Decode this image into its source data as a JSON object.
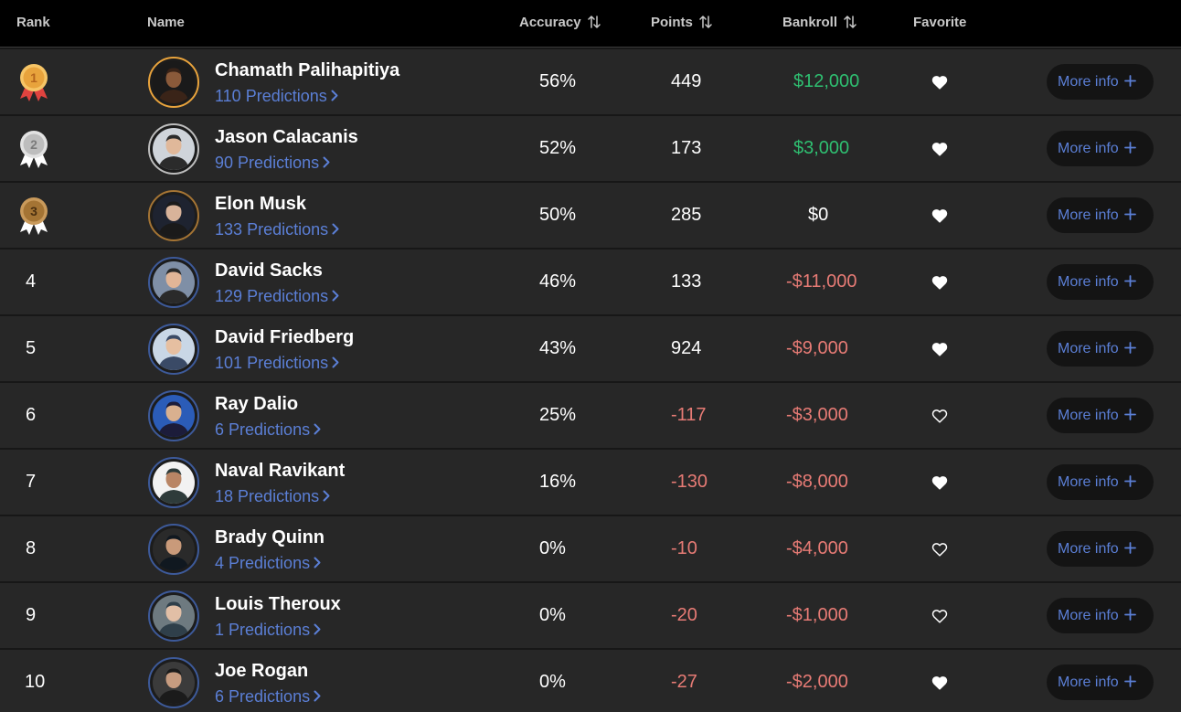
{
  "header": {
    "rank": "Rank",
    "name": "Name",
    "accuracy": "Accuracy",
    "points": "Points",
    "bankroll": "Bankroll",
    "favorite": "Favorite",
    "sort_icon": "sort-arrows-icon"
  },
  "button_label": "More info",
  "button_icon": "plus-icon",
  "colors": {
    "positive": "#2fbf71",
    "negative": "#e77b75",
    "link": "#5b7fd6",
    "gold": "#e8a33c",
    "silver": "#bfbfbf",
    "bronze": "#a47434"
  },
  "rows": [
    {
      "rank": "1",
      "medal": "gold-medal-icon",
      "name": "Chamath Palihapitiya",
      "predictions_count": "110",
      "predictions_label": "Predictions",
      "accuracy": "56%",
      "points": "449",
      "bankroll": "$12,000",
      "favorite": true
    },
    {
      "rank": "2",
      "medal": "silver-medal-icon",
      "name": "Jason Calacanis",
      "predictions_count": "90",
      "predictions_label": "Predictions",
      "accuracy": "52%",
      "points": "173",
      "bankroll": "$3,000",
      "favorite": true
    },
    {
      "rank": "3",
      "medal": "bronze-medal-icon",
      "name": "Elon Musk",
      "predictions_count": "133",
      "predictions_label": "Predictions",
      "accuracy": "50%",
      "points": "285",
      "bankroll": "$0",
      "favorite": true
    },
    {
      "rank": "4",
      "medal": "",
      "name": "David Sacks",
      "predictions_count": "129",
      "predictions_label": "Predictions",
      "accuracy": "46%",
      "points": "133",
      "bankroll": "-$11,000",
      "favorite": true
    },
    {
      "rank": "5",
      "medal": "",
      "name": "David Friedberg",
      "predictions_count": "101",
      "predictions_label": "Predictions",
      "accuracy": "43%",
      "points": "924",
      "bankroll": "-$9,000",
      "favorite": true
    },
    {
      "rank": "6",
      "medal": "",
      "name": "Ray Dalio",
      "predictions_count": "6",
      "predictions_label": "Predictions",
      "accuracy": "25%",
      "points": "-117",
      "bankroll": "-$3,000",
      "favorite": false
    },
    {
      "rank": "7",
      "medal": "",
      "name": "Naval Ravikant",
      "predictions_count": "18",
      "predictions_label": "Predictions",
      "accuracy": "16%",
      "points": "-130",
      "bankroll": "-$8,000",
      "favorite": true
    },
    {
      "rank": "8",
      "medal": "",
      "name": "Brady Quinn",
      "predictions_count": "4",
      "predictions_label": "Predictions",
      "accuracy": "0%",
      "points": "-10",
      "bankroll": "-$4,000",
      "favorite": false
    },
    {
      "rank": "9",
      "medal": "",
      "name": "Louis Theroux",
      "predictions_count": "1",
      "predictions_label": "Predictions",
      "accuracy": "0%",
      "points": "-20",
      "bankroll": "-$1,000",
      "favorite": false
    },
    {
      "rank": "10",
      "medal": "",
      "name": "Joe Rogan",
      "predictions_count": "6",
      "predictions_label": "Predictions",
      "accuracy": "0%",
      "points": "-27",
      "bankroll": "-$2,000",
      "favorite": true
    }
  ]
}
